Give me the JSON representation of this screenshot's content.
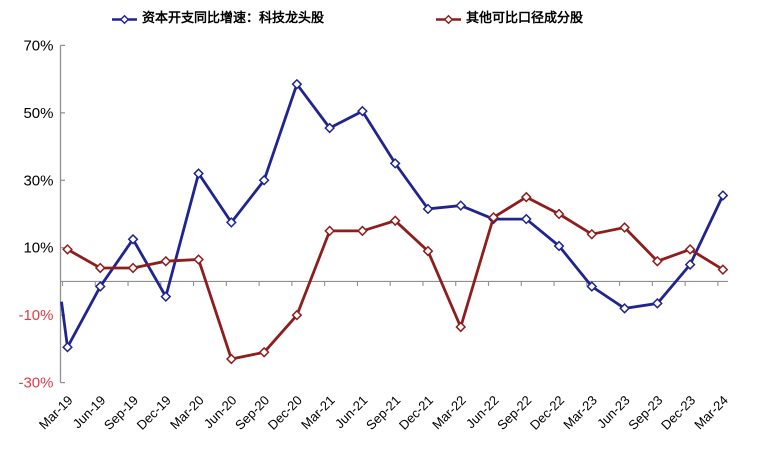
{
  "chart_data": {
    "type": "line",
    "categories": [
      "Mar-19",
      "Jun-19",
      "Sep-19",
      "Dec-19",
      "Mar-20",
      "Jun-20",
      "Sep-20",
      "Dec-20",
      "Mar-21",
      "Jun-21",
      "Sep-21",
      "Dec-21",
      "Mar-22",
      "Jun-22",
      "Sep-22",
      "Dec-22",
      "Mar-23",
      "Jun-23",
      "Sep-23",
      "Dec-23",
      "Mar-24"
    ],
    "series": [
      {
        "name": "资本开支同比增速：科技龙头股",
        "color": "#1f2490",
        "marker": "diamond-hollow",
        "lead_in_value": -6,
        "values": [
          -19.5,
          -1.5,
          12.5,
          -4.5,
          32,
          17.5,
          30,
          58.5,
          45.5,
          50.5,
          35,
          21.5,
          22.5,
          18.5,
          18.5,
          10.5,
          -1.5,
          -8,
          -6.5,
          5,
          25.5
        ]
      },
      {
        "name": "其他可比口径成分股",
        "color": "#8e1e1e",
        "marker": "diamond-hollow",
        "lead_in_value": null,
        "values": [
          9.5,
          4,
          4,
          6,
          6.5,
          -23,
          -21,
          -10,
          15,
          15,
          18,
          9,
          -13.5,
          19,
          25,
          20,
          14,
          16,
          6,
          9.5,
          3.5
        ]
      }
    ],
    "title": "",
    "xlabel": "",
    "ylabel": "",
    "ylim": [
      -30,
      70
    ],
    "yticks": [
      70,
      50,
      30,
      10,
      -10,
      -30
    ],
    "ytick_suffix": "%",
    "ytick_color_positive": "#000000",
    "ytick_color_negative": "#e63a47",
    "xlabel_color": "#000000",
    "xlabel_rotation": -45,
    "axis_color": "#8f8f8f",
    "zero_axis": true,
    "grid": "off",
    "legend_position": "top"
  }
}
